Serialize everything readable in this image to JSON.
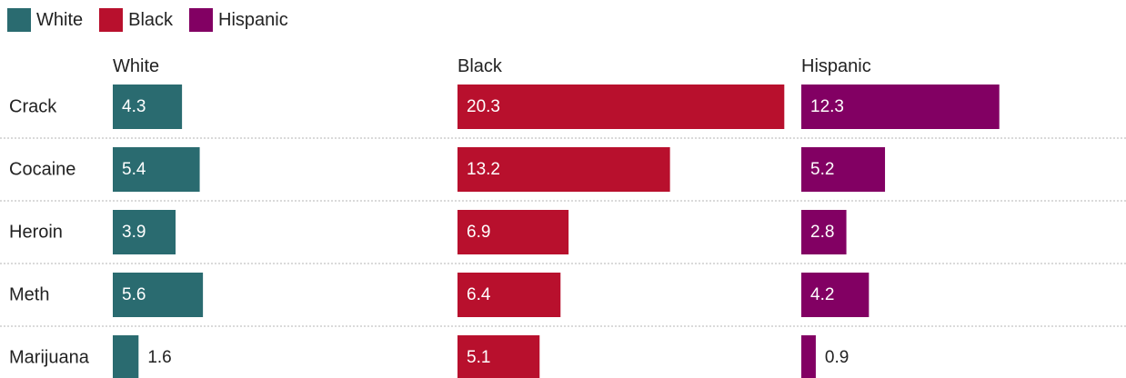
{
  "legend": [
    {
      "label": "White",
      "color": "#2a6b70"
    },
    {
      "label": "Black",
      "color": "#b8102d"
    },
    {
      "label": "Hispanic",
      "color": "#820063"
    }
  ],
  "chart_data": {
    "type": "bar",
    "orientation": "horizontal",
    "layout": "small-multiples",
    "categories": [
      "Crack",
      "Cocaine",
      "Heroin",
      "Meth",
      "Marijuana"
    ],
    "series": [
      {
        "name": "White",
        "color": "#2a6b70",
        "values": [
          4.3,
          5.4,
          3.9,
          5.6,
          1.6
        ]
      },
      {
        "name": "Black",
        "color": "#b8102d",
        "values": [
          20.3,
          13.2,
          6.9,
          6.4,
          5.1
        ]
      },
      {
        "name": "Hispanic",
        "color": "#820063",
        "values": [
          12.3,
          5.2,
          2.8,
          4.2,
          0.9
        ]
      }
    ],
    "title": "",
    "xlabel": "",
    "ylabel": "",
    "legend_position": "top-left",
    "grid": false,
    "row_separators": "dotted"
  }
}
